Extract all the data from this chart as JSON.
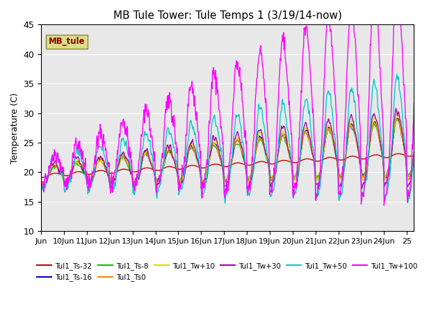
{
  "title": "MB Tule Tower: Tule Temps 1 (3/19/14-now)",
  "ylabel": "Temperature (C)",
  "ylim": [
    10,
    45
  ],
  "yticks": [
    10,
    15,
    20,
    25,
    30,
    35,
    40,
    45
  ],
  "plot_bg_color": "#e8e8e8",
  "series": [
    {
      "label": "Tul1_Ts-32",
      "color": "#cc0000"
    },
    {
      "label": "Tul1_Ts-16",
      "color": "#0000cc"
    },
    {
      "label": "Tul1_Ts-8",
      "color": "#00cc00"
    },
    {
      "label": "Tul1_Ts0",
      "color": "#ff8800"
    },
    {
      "label": "Tul1_Tw+10",
      "color": "#dddd00"
    },
    {
      "label": "Tul1_Tw+30",
      "color": "#aa00aa"
    },
    {
      "label": "Tul1_Tw+50",
      "color": "#00cccc"
    },
    {
      "label": "Tul1_Tw+100",
      "color": "#ff00ff"
    }
  ],
  "station_label": "MB_tule",
  "station_label_color": "#880000",
  "station_box_facecolor": "#dddd88",
  "station_box_edgecolor": "#888844",
  "x_start": 9.0,
  "x_end": 25.3,
  "xtick_positions": [
    9,
    10,
    11,
    12,
    13,
    14,
    15,
    16,
    17,
    18,
    19,
    20,
    21,
    22,
    23,
    24,
    25
  ],
  "xtick_labels": [
    "Jun",
    "10Jun",
    "11Jun",
    "12Jun",
    "13Jun",
    "14Jun",
    "15Jun",
    "16Jun",
    "17Jun",
    "18Jun",
    "19Jun",
    "20Jun",
    "21Jun",
    "22Jun",
    "23Jun",
    "24Jun",
    "25"
  ],
  "legend_entries": [
    {
      "label": "Tul1_Ts-32",
      "color": "#cc0000"
    },
    {
      "label": "Tul1_Ts-16",
      "color": "#0000cc"
    },
    {
      "label": "Tul1_Ts-8",
      "color": "#00cc00"
    },
    {
      "label": "Tul1_Ts0",
      "color": "#ff8800"
    },
    {
      "label": "Tul1_Tw+10",
      "color": "#dddd00"
    },
    {
      "label": "Tul1_Tw+30",
      "color": "#aa00aa"
    },
    {
      "label": "Tul1_Tw+50",
      "color": "#00cccc"
    },
    {
      "label": "Tul1_Tw+100",
      "color": "#ff00ff"
    }
  ]
}
